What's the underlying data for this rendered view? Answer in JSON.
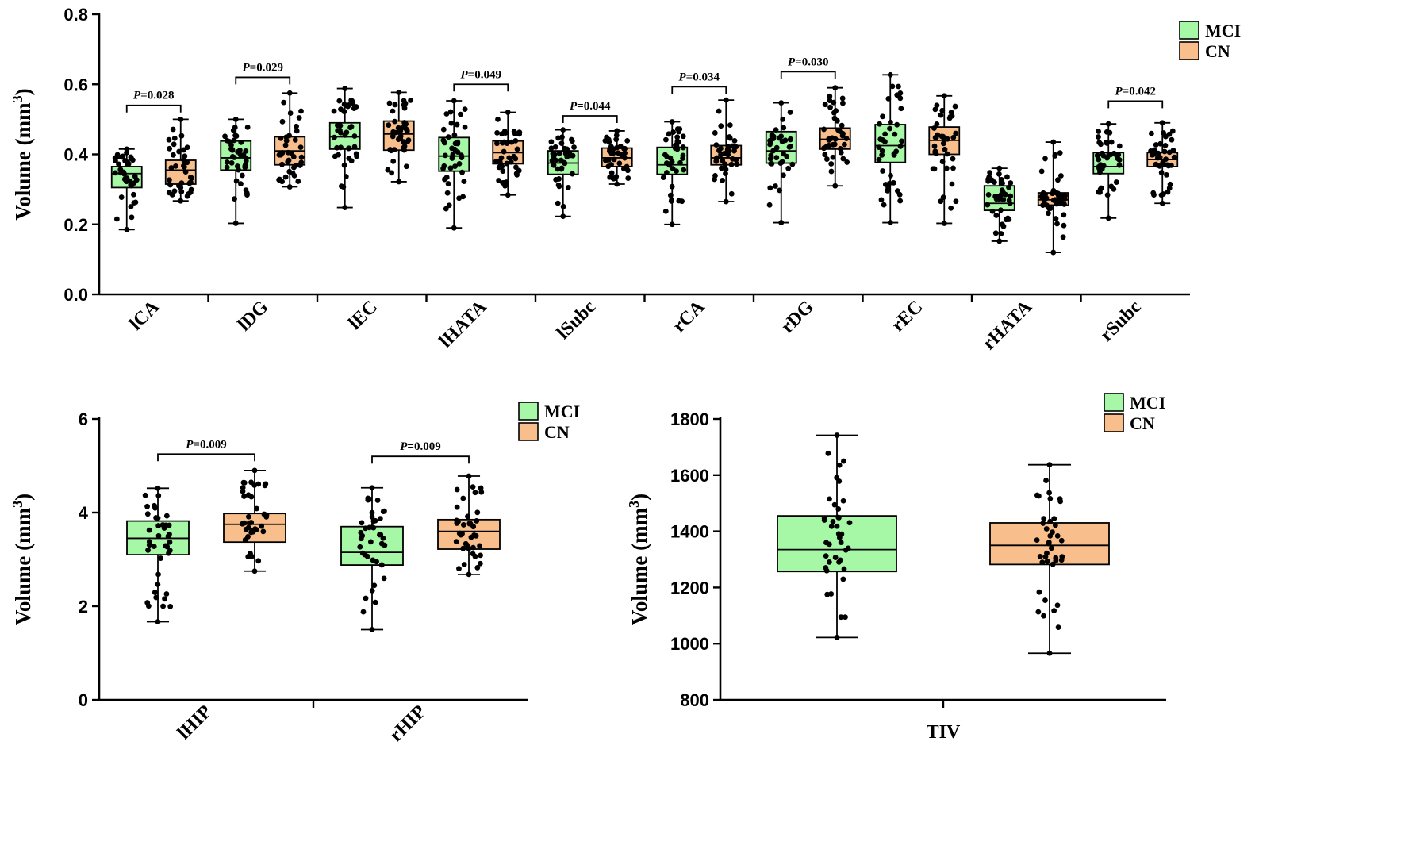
{
  "colors": {
    "MCI": "#a6f7a6",
    "CN": "#f8bf8c"
  },
  "chart_data": [
    {
      "id": "subfields",
      "type": "box",
      "ylabel_main": "Volume (mm",
      "ylabel_sup": "3",
      "ylabel_close": ")",
      "ylim": [
        0.0,
        0.8
      ],
      "yticks": [
        0.0,
        0.2,
        0.4,
        0.6,
        0.8
      ],
      "ytick_labels": [
        "0.0",
        "0.2",
        "0.4",
        "0.6",
        "0.8"
      ],
      "categories": [
        "lCA",
        "lDG",
        "lEC",
        "lHATA",
        "lSubc",
        "rCA",
        "rDG",
        "rEC",
        "rHATA",
        "rSubc"
      ],
      "legend": [
        "MCI",
        "CN"
      ],
      "series": [
        {
          "name": "MCI",
          "boxes": [
            {
              "min": 0.185,
              "q1": 0.305,
              "median": 0.345,
              "q3": 0.365,
              "max": 0.415
            },
            {
              "min": 0.203,
              "q1": 0.355,
              "median": 0.39,
              "q3": 0.438,
              "max": 0.5
            },
            {
              "min": 0.248,
              "q1": 0.415,
              "median": 0.45,
              "q3": 0.49,
              "max": 0.588
            },
            {
              "min": 0.19,
              "q1": 0.352,
              "median": 0.395,
              "q3": 0.448,
              "max": 0.553
            },
            {
              "min": 0.223,
              "q1": 0.343,
              "median": 0.375,
              "q3": 0.41,
              "max": 0.47
            },
            {
              "min": 0.2,
              "q1": 0.343,
              "median": 0.37,
              "q3": 0.42,
              "max": 0.493
            },
            {
              "min": 0.205,
              "q1": 0.375,
              "median": 0.41,
              "q3": 0.465,
              "max": 0.547
            },
            {
              "min": 0.205,
              "q1": 0.377,
              "median": 0.425,
              "q3": 0.485,
              "max": 0.627
            },
            {
              "min": 0.152,
              "q1": 0.24,
              "median": 0.26,
              "q3": 0.31,
              "max": 0.36
            },
            {
              "min": 0.218,
              "q1": 0.345,
              "median": 0.365,
              "q3": 0.405,
              "max": 0.487
            }
          ]
        },
        {
          "name": "CN",
          "boxes": [
            {
              "min": 0.267,
              "q1": 0.315,
              "median": 0.355,
              "q3": 0.383,
              "max": 0.5
            },
            {
              "min": 0.307,
              "q1": 0.37,
              "median": 0.41,
              "q3": 0.45,
              "max": 0.575
            },
            {
              "min": 0.322,
              "q1": 0.412,
              "median": 0.458,
              "q3": 0.495,
              "max": 0.577
            },
            {
              "min": 0.284,
              "q1": 0.373,
              "median": 0.405,
              "q3": 0.438,
              "max": 0.52
            },
            {
              "min": 0.315,
              "q1": 0.365,
              "median": 0.39,
              "q3": 0.418,
              "max": 0.467
            },
            {
              "min": 0.265,
              "q1": 0.37,
              "median": 0.39,
              "q3": 0.425,
              "max": 0.555
            },
            {
              "min": 0.31,
              "q1": 0.415,
              "median": 0.443,
              "q3": 0.475,
              "max": 0.59
            },
            {
              "min": 0.203,
              "q1": 0.4,
              "median": 0.44,
              "q3": 0.478,
              "max": 0.567
            },
            {
              "min": 0.12,
              "q1": 0.255,
              "median": 0.27,
              "q3": 0.29,
              "max": 0.435
            },
            {
              "min": 0.26,
              "q1": 0.365,
              "median": 0.385,
              "q3": 0.405,
              "max": 0.49
            }
          ]
        }
      ],
      "annotations": [
        {
          "category_index": 0,
          "label_prefix": "P",
          "label_rest": "=0.028",
          "y": 0.54
        },
        {
          "category_index": 1,
          "label_prefix": "P",
          "label_rest": "=0.029",
          "y": 0.62
        },
        {
          "category_index": 3,
          "label_prefix": "P",
          "label_rest": "=0.049",
          "y": 0.6
        },
        {
          "category_index": 4,
          "label_prefix": "P",
          "label_rest": "=0.044",
          "y": 0.51
        },
        {
          "category_index": 5,
          "label_prefix": "P",
          "label_rest": "=0.034",
          "y": 0.593
        },
        {
          "category_index": 6,
          "label_prefix": "P",
          "label_rest": "=0.030",
          "y": 0.636
        },
        {
          "category_index": 9,
          "label_prefix": "P",
          "label_rest": "=0.042",
          "y": 0.552
        }
      ]
    },
    {
      "id": "hippocampus",
      "type": "box",
      "ylabel_main": "Volume (mm",
      "ylabel_sup": "3",
      "ylabel_close": ")",
      "ylim": [
        0,
        6
      ],
      "yticks": [
        0,
        2,
        4,
        6
      ],
      "ytick_labels": [
        "0",
        "2",
        "4",
        "6"
      ],
      "categories": [
        "lHIP",
        "rHIP"
      ],
      "legend": [
        "MCI",
        "CN"
      ],
      "series": [
        {
          "name": "MCI",
          "boxes": [
            {
              "min": 1.67,
              "q1": 3.1,
              "median": 3.45,
              "q3": 3.82,
              "max": 4.52
            },
            {
              "min": 1.5,
              "q1": 2.88,
              "median": 3.15,
              "q3": 3.7,
              "max": 4.53
            }
          ]
        },
        {
          "name": "CN",
          "boxes": [
            {
              "min": 2.75,
              "q1": 3.37,
              "median": 3.75,
              "q3": 3.98,
              "max": 4.9
            },
            {
              "min": 2.68,
              "q1": 3.22,
              "median": 3.6,
              "q3": 3.85,
              "max": 4.78
            }
          ]
        }
      ],
      "annotations": [
        {
          "category_index": 0,
          "label_prefix": "P",
          "label_rest": "=0.009",
          "y": 5.25
        },
        {
          "category_index": 1,
          "label_prefix": "P",
          "label_rest": "=0.009",
          "y": 5.2
        }
      ]
    },
    {
      "id": "tiv",
      "type": "box",
      "ylabel_main": "Volume (mm",
      "ylabel_sup": "3",
      "ylabel_close": ")",
      "ylim": [
        800,
        1800
      ],
      "yticks": [
        800,
        1000,
        1200,
        1400,
        1600,
        1800
      ],
      "ytick_labels": [
        "800",
        "1000",
        "1200",
        "1400",
        "1600",
        "1800"
      ],
      "categories": [
        "TIV"
      ],
      "legend": [
        "MCI",
        "CN"
      ],
      "series": [
        {
          "name": "MCI",
          "boxes": [
            {
              "min": 1022,
              "q1": 1257,
              "median": 1335,
              "q3": 1455,
              "max": 1742
            }
          ]
        },
        {
          "name": "CN",
          "boxes": [
            {
              "min": 966,
              "q1": 1282,
              "median": 1350,
              "q3": 1430,
              "max": 1637
            }
          ]
        }
      ],
      "annotations": []
    }
  ]
}
